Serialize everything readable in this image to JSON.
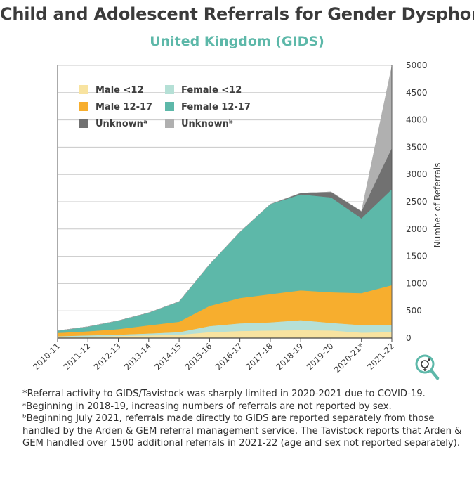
{
  "title": "Child and Adolescent Referrals for Gender Dysphoria",
  "subtitle": "United Kingdom (GIDS)",
  "colors": {
    "male_u12": "#f8e3a0",
    "female_u12": "#b5e0d6",
    "male_12_17": "#f7ae2e",
    "female_12_17": "#5db8a9",
    "unknown_a": "#717171",
    "unknown_b": "#b0b0b0",
    "grid": "#c8c8c8",
    "text": "#3a3a3a"
  },
  "chart_data": {
    "type": "area",
    "stacked": true,
    "categories": [
      "2010-11",
      "2011-12",
      "2012-13",
      "2013-14",
      "2014-15",
      "2015-16",
      "2016-17",
      "2017-18",
      "2018-19",
      "2019-20",
      "2020-21*",
      "2021-22"
    ],
    "series": [
      {
        "name": "Male <12",
        "values": [
          20,
          30,
          40,
          50,
          60,
          110,
          130,
          140,
          145,
          140,
          100,
          110
        ]
      },
      {
        "name": "Female <12",
        "values": [
          15,
          20,
          25,
          35,
          50,
          110,
          140,
          150,
          185,
          140,
          140,
          130
        ]
      },
      {
        "name": "Male 12-17",
        "values": [
          60,
          75,
          100,
          150,
          190,
          370,
          465,
          515,
          545,
          560,
          585,
          730
        ]
      },
      {
        "name": "Female 12-17",
        "values": [
          40,
          85,
          155,
          230,
          370,
          760,
          1210,
          1650,
          1760,
          1740,
          1370,
          1760
        ]
      },
      {
        "name": "Unknownᵃ",
        "values": [
          0,
          0,
          0,
          0,
          0,
          0,
          0,
          0,
          25,
          100,
          130,
          760
        ]
      },
      {
        "name": "Unknownᵇ",
        "values": [
          0,
          0,
          0,
          0,
          0,
          0,
          0,
          0,
          0,
          0,
          0,
          1500
        ]
      }
    ],
    "ylabel": "Number of Referrals",
    "ylim": [
      0,
      5000
    ],
    "yticks": [
      0,
      500,
      1000,
      1500,
      2000,
      2500,
      3000,
      3500,
      4000,
      4500,
      5000
    ],
    "grid": true,
    "legend_position": "top-left"
  },
  "notes": [
    "*Referral activity to GIDS/Tavistock was sharply limited in 2020-2021 due to COVID-19.",
    "ᵃBeginning in 2018-19, increasing numbers of referrals are not reported by sex.",
    "ᵇBeginning July 2021, referrals made directly to GIDS are reported separately from those handled by the Arden & GEM referral management service. The Tavistock reports that Arden & GEM handled over 1500 additional referrals in 2021-22 (age and sex not reported separately)."
  ],
  "logo_icon": "magnifier-gender-icon"
}
